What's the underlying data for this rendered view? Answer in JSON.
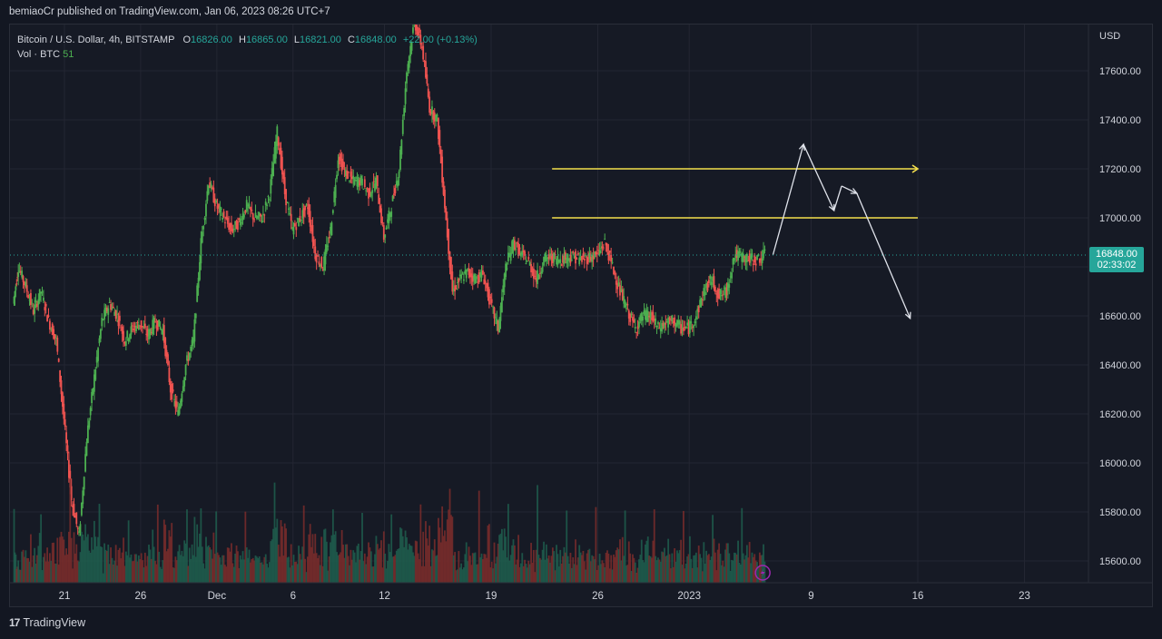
{
  "header": {
    "published_text": "bemiaoCr published on TradingView.com, Jan 06, 2023 08:26 UTC+7"
  },
  "legend": {
    "symbol_title": "Bitcoin / U.S. Dollar, 4h, BITSTAMP",
    "o_label": "O",
    "o_value": "16826.00",
    "h_label": "H",
    "h_value": "16865.00",
    "l_label": "L",
    "l_value": "16821.00",
    "c_label": "C",
    "c_value": "16848.00",
    "change": "+22.00 (+0.13%)",
    "volume_label": "Vol · BTC",
    "volume_value": "51"
  },
  "price_scale": {
    "currency": "USD",
    "current_price": "16848.00",
    "countdown": "02:33:02"
  },
  "footer": {
    "brand": "TradingView",
    "logo_text": "17"
  },
  "colors": {
    "background": "#161a25",
    "up": "#26a69a",
    "up_bright": "#4caf50",
    "down": "#ef5350",
    "grid": "#232632",
    "hline": "#f4e04d",
    "arrow": "#e0e3eb"
  },
  "chart_data": {
    "type": "candlestick",
    "interval": "4h",
    "symbol": "BTCUSD",
    "exchange": "BITSTAMP",
    "ylim": [
      15500,
      17800
    ],
    "y_ticks": [
      15600,
      15800,
      16000,
      16200,
      16400,
      16600,
      16800,
      17000,
      17200,
      17400,
      17600
    ],
    "y_tick_labels": [
      "15600.00",
      "15800.00",
      "16000.00",
      "16200.00",
      "16400.00",
      "16600.00",
      "16800.00",
      "17000.00",
      "17200.00",
      "17400.00",
      "17600.00"
    ],
    "x_tick_labels": [
      "21",
      "26",
      "Dec",
      "6",
      "12",
      "19",
      "26",
      "2023",
      "9",
      "16",
      "23"
    ],
    "price_path": [
      [
        "2022-11-17 16:00",
        16650
      ],
      [
        "2022-11-18",
        16800
      ],
      [
        "2022-11-18 12:00",
        16720
      ],
      [
        "2022-11-19",
        16620
      ],
      [
        "2022-11-19 12:00",
        16700
      ],
      [
        "2022-11-20",
        16580
      ],
      [
        "2022-11-20 12:00",
        16500
      ],
      [
        "2022-11-21",
        16180
      ],
      [
        "2022-11-21 12:00",
        15850
      ],
      [
        "2022-11-22",
        15700
      ],
      [
        "2022-11-22 12:00",
        16100
      ],
      [
        "2022-11-23",
        16350
      ],
      [
        "2022-11-23 12:00",
        16580
      ],
      [
        "2022-11-24",
        16650
      ],
      [
        "2022-11-24 12:00",
        16600
      ],
      [
        "2022-11-25",
        16500
      ],
      [
        "2022-11-25 12:00",
        16550
      ],
      [
        "2022-11-26",
        16570
      ],
      [
        "2022-11-26 12:00",
        16520
      ],
      [
        "2022-11-27",
        16580
      ],
      [
        "2022-11-27 12:00",
        16540
      ],
      [
        "2022-11-28",
        16300
      ],
      [
        "2022-11-28 12:00",
        16200
      ],
      [
        "2022-11-29",
        16400
      ],
      [
        "2022-11-29 12:00",
        16500
      ],
      [
        "2022-11-30",
        16900
      ],
      [
        "2022-11-30 12:00",
        17150
      ],
      [
        "2022-12-01",
        17050
      ],
      [
        "2022-12-01 12:00",
        17000
      ],
      [
        "2022-12-02",
        16950
      ],
      [
        "2022-12-02 12:00",
        16980
      ],
      [
        "2022-12-03",
        17050
      ],
      [
        "2022-12-03 12:00",
        17000
      ],
      [
        "2022-12-04",
        17000
      ],
      [
        "2022-12-04 12:00",
        17100
      ],
      [
        "2022-12-05",
        17350
      ],
      [
        "2022-12-05 12:00",
        17100
      ],
      [
        "2022-12-06",
        16950
      ],
      [
        "2022-12-06 12:00",
        17000
      ],
      [
        "2022-12-07",
        17050
      ],
      [
        "2022-12-07 12:00",
        16850
      ],
      [
        "2022-12-08",
        16800
      ],
      [
        "2022-12-08 12:00",
        16950
      ],
      [
        "2022-12-09",
        17250
      ],
      [
        "2022-12-09 12:00",
        17180
      ],
      [
        "2022-12-10",
        17150
      ],
      [
        "2022-12-10 12:00",
        17150
      ],
      [
        "2022-12-11",
        17100
      ],
      [
        "2022-12-11 12:00",
        17150
      ],
      [
        "2022-12-12",
        16920
      ],
      [
        "2022-12-12 12:00",
        17050
      ],
      [
        "2022-12-13",
        17200
      ],
      [
        "2022-12-13 12:00",
        17600
      ],
      [
        "2022-12-14",
        17800
      ],
      [
        "2022-12-14 12:00",
        17700
      ],
      [
        "2022-12-15",
        17450
      ],
      [
        "2022-12-15 12:00",
        17400
      ],
      [
        "2022-12-16",
        17050
      ],
      [
        "2022-12-16 12:00",
        16700
      ],
      [
        "2022-12-17",
        16750
      ],
      [
        "2022-12-17 12:00",
        16780
      ],
      [
        "2022-12-18",
        16750
      ],
      [
        "2022-12-18 12:00",
        16770
      ],
      [
        "2022-12-19",
        16650
      ],
      [
        "2022-12-19 12:00",
        16550
      ],
      [
        "2022-12-20",
        16800
      ],
      [
        "2022-12-20 12:00",
        16900
      ],
      [
        "2022-12-21",
        16850
      ],
      [
        "2022-12-21 12:00",
        16820
      ],
      [
        "2022-12-22",
        16750
      ],
      [
        "2022-12-22 12:00",
        16830
      ],
      [
        "2022-12-23",
        16840
      ],
      [
        "2022-12-23 12:00",
        16830
      ],
      [
        "2022-12-24",
        16840
      ],
      [
        "2022-12-24 12:00",
        16840
      ],
      [
        "2022-12-25",
        16830
      ],
      [
        "2022-12-25 12:00",
        16840
      ],
      [
        "2022-12-26",
        16850
      ],
      [
        "2022-12-26 12:00",
        16900
      ],
      [
        "2022-12-27",
        16800
      ],
      [
        "2022-12-27 12:00",
        16700
      ],
      [
        "2022-12-28",
        16620
      ],
      [
        "2022-12-28 12:00",
        16550
      ],
      [
        "2022-12-29",
        16600
      ],
      [
        "2022-12-29 12:00",
        16600
      ],
      [
        "2022-12-30",
        16550
      ],
      [
        "2022-12-30 12:00",
        16570
      ],
      [
        "2022-12-31",
        16580
      ],
      [
        "2022-12-31 12:00",
        16550
      ],
      [
        "2023-01-01",
        16550
      ],
      [
        "2023-01-01 12:00",
        16600
      ],
      [
        "2023-01-02",
        16700
      ],
      [
        "2023-01-02 12:00",
        16750
      ],
      [
        "2023-01-03",
        16680
      ],
      [
        "2023-01-03 12:00",
        16700
      ],
      [
        "2023-01-04",
        16850
      ],
      [
        "2023-01-04 12:00",
        16840
      ],
      [
        "2023-01-05",
        16830
      ],
      [
        "2023-01-05 12:00",
        16830
      ],
      [
        "2023-01-06",
        16848
      ]
    ],
    "horizontal_lines": [
      {
        "y": 17200,
        "from": "2022-12-23",
        "to": "2023-01-16",
        "arrow_end": true
      },
      {
        "y": 17000,
        "from": "2022-12-23",
        "to": "2023-01-16"
      }
    ],
    "projection_path": [
      [
        "2023-01-06 12:00",
        16850
      ],
      [
        "2023-01-08 12:00",
        17300
      ],
      [
        "2023-01-10 12:00",
        17030
      ],
      [
        "2023-01-11",
        17130
      ],
      [
        "2023-01-12",
        17100
      ],
      [
        "2023-01-15 12:00",
        16590
      ]
    ]
  }
}
